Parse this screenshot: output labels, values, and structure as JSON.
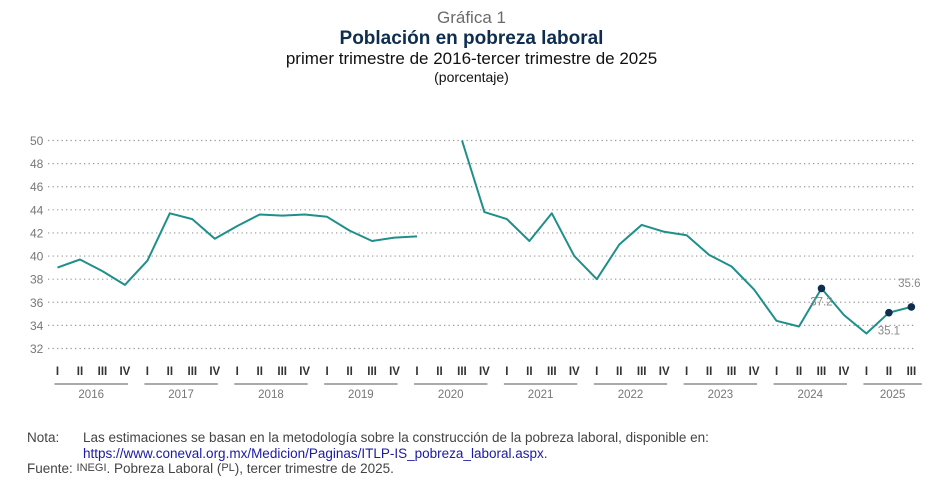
{
  "header": {
    "kicker": "Gráfica 1",
    "title": "Población en pobreza laboral",
    "subtitle": "primer trimestre de 2016-tercer trimestre de 2025",
    "unit": "(porcentaje)"
  },
  "chart_data": {
    "type": "line",
    "title": "Población en pobreza laboral",
    "subtitle": "primer trimestre de 2016-tercer trimestre de 2025",
    "ylabel": "(porcentaje)",
    "xlabel": "",
    "ylim": [
      32,
      50
    ],
    "yticks": [
      "32",
      "34",
      "36",
      "38",
      "40",
      "42",
      "44",
      "46",
      "48",
      "50"
    ],
    "grid": true,
    "colors": {
      "line": "#1f8f8a",
      "marker": "#0f2e4f",
      "grid": "#9a9a9a",
      "tick_text": "#777777"
    },
    "years": [
      "2016",
      "2017",
      "2018",
      "2019",
      "2020",
      "2021",
      "2022",
      "2023",
      "2024",
      "2025"
    ],
    "quarters_per_year": [
      [
        "I",
        "II",
        "III",
        "IV"
      ],
      [
        "I",
        "II",
        "III",
        "IV"
      ],
      [
        "I",
        "II",
        "III",
        "IV"
      ],
      [
        "I",
        "II",
        "III",
        "IV"
      ],
      [
        "I",
        "II",
        "III",
        "IV"
      ],
      [
        "I",
        "II",
        "III",
        "IV"
      ],
      [
        "I",
        "II",
        "III",
        "IV"
      ],
      [
        "I",
        "II",
        "III",
        "IV"
      ],
      [
        "I",
        "II",
        "III",
        "IV"
      ],
      [
        "I",
        "II",
        "III"
      ]
    ],
    "series": [
      {
        "name": "Población en pobreza laboral",
        "values": [
          39.0,
          39.7,
          38.7,
          37.5,
          39.6,
          43.7,
          43.2,
          41.5,
          42.6,
          43.6,
          43.5,
          43.6,
          43.4,
          42.2,
          41.3,
          41.6,
          41.7,
          null,
          50.0,
          43.8,
          43.2,
          41.3,
          43.7,
          40.0,
          38.0,
          41.0,
          42.7,
          42.1,
          41.8,
          40.1,
          39.1,
          37.1,
          34.4,
          33.9,
          37.2,
          34.9,
          33.3,
          35.1,
          35.6
        ]
      }
    ],
    "annotations": [
      {
        "index": 34,
        "label": "37.2"
      },
      {
        "index": 37,
        "label": "35.1"
      },
      {
        "index": 38,
        "label": "35.6"
      }
    ]
  },
  "notes": {
    "nota_label": "Nota:",
    "nota_text": "Las estimaciones se basan en la metodología sobre la construcción de la pobreza laboral, disponible en:",
    "nota_link": "https://www.coneval.org.mx/Medicion/Paginas/ITLP-IS_pobreza_laboral.aspx",
    "nota_end": ".",
    "fuente_label": "Fuente:",
    "fuente_org": "INEGI",
    "fuente_text1": ". Pobreza Laboral (",
    "fuente_abbr": "PL",
    "fuente_text2": "), tercer trimestre de 2025."
  }
}
